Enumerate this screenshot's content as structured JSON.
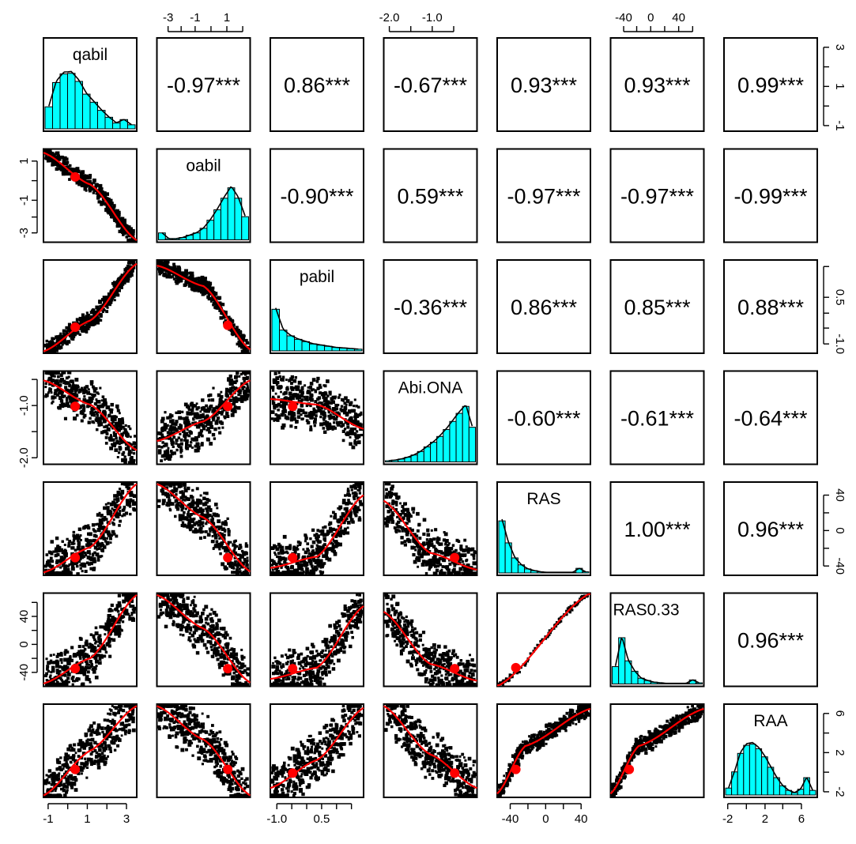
{
  "chart_data": {
    "type": "scatter",
    "variables": [
      "qabil",
      "oabil",
      "pabil",
      "Abi.ONA",
      "RAS",
      "RAS0.33",
      "RAA"
    ],
    "correlations": [
      {
        "row": 0,
        "col": 1,
        "text": "-0.97***",
        "value": -0.97
      },
      {
        "row": 0,
        "col": 2,
        "text": "0.86***",
        "value": 0.86
      },
      {
        "row": 0,
        "col": 3,
        "text": "-0.67***",
        "value": -0.67
      },
      {
        "row": 0,
        "col": 4,
        "text": "0.93***",
        "value": 0.93
      },
      {
        "row": 0,
        "col": 5,
        "text": "0.93***",
        "value": 0.93
      },
      {
        "row": 0,
        "col": 6,
        "text": "0.99***",
        "value": 0.99
      },
      {
        "row": 1,
        "col": 2,
        "text": "-0.90***",
        "value": -0.9
      },
      {
        "row": 1,
        "col": 3,
        "text": "0.59***",
        "value": 0.59
      },
      {
        "row": 1,
        "col": 4,
        "text": "-0.97***",
        "value": -0.97
      },
      {
        "row": 1,
        "col": 5,
        "text": "-0.97***",
        "value": -0.97
      },
      {
        "row": 1,
        "col": 6,
        "text": "-0.99***",
        "value": -0.99
      },
      {
        "row": 2,
        "col": 3,
        "text": "-0.36***",
        "value": -0.36
      },
      {
        "row": 2,
        "col": 4,
        "text": "0.86***",
        "value": 0.86
      },
      {
        "row": 2,
        "col": 5,
        "text": "0.85***",
        "value": 0.85
      },
      {
        "row": 2,
        "col": 6,
        "text": "0.88***",
        "value": 0.88
      },
      {
        "row": 3,
        "col": 4,
        "text": "-0.60***",
        "value": -0.6
      },
      {
        "row": 3,
        "col": 5,
        "text": "-0.61***",
        "value": -0.61
      },
      {
        "row": 3,
        "col": 6,
        "text": "-0.64***",
        "value": -0.64
      },
      {
        "row": 4,
        "col": 5,
        "text": "1.00***",
        "value": 1.0
      },
      {
        "row": 4,
        "col": 6,
        "text": "0.96***",
        "value": 0.96
      },
      {
        "row": 5,
        "col": 6,
        "text": "0.96***",
        "value": 0.96
      }
    ],
    "histograms": [
      {
        "var": "qabil",
        "counts": [
          0.38,
          0.8,
          0.95,
          0.96,
          0.82,
          0.6,
          0.46,
          0.32,
          0.2,
          0.1,
          0.16,
          0.07
        ]
      },
      {
        "var": "oabil",
        "counts": [
          0.12,
          0.02,
          0.02,
          0.04,
          0.08,
          0.12,
          0.2,
          0.34,
          0.52,
          0.72,
          0.9,
          0.72,
          0.4
        ]
      },
      {
        "var": "pabil",
        "counts": [
          0.72,
          0.36,
          0.26,
          0.2,
          0.16,
          0.12,
          0.1,
          0.08,
          0.06,
          0.05,
          0.04,
          0.03
        ]
      },
      {
        "var": "Abi.ONA",
        "counts": [
          0.02,
          0.03,
          0.05,
          0.08,
          0.12,
          0.18,
          0.26,
          0.34,
          0.44,
          0.56,
          0.7,
          0.84,
          0.96,
          0.6
        ]
      },
      {
        "var": "RAS",
        "counts": [
          0.9,
          0.52,
          0.26,
          0.14,
          0.07,
          0.04,
          0.02,
          0.01,
          0.01,
          0.01,
          0.01,
          0.01,
          0.08,
          0.02
        ]
      },
      {
        "var": "RAS0.33",
        "counts": [
          0.3,
          0.8,
          0.4,
          0.22,
          0.1,
          0.06,
          0.03,
          0.02,
          0.01,
          0.01,
          0.01,
          0.01,
          0.07,
          0.02
        ]
      },
      {
        "var": "RAA",
        "counts": [
          0.12,
          0.4,
          0.72,
          0.86,
          0.88,
          0.8,
          0.66,
          0.48,
          0.3,
          0.16,
          0.08,
          0.04,
          0.1,
          0.3,
          0.08
        ]
      }
    ],
    "scatter_trends": [
      {
        "row": 1,
        "col": 0,
        "shape": "decreasing-concave",
        "loess": [
          [
            0,
            0.96
          ],
          [
            0.5,
            0.62
          ],
          [
            1,
            0.02
          ]
        ],
        "mean": [
          0.34,
          0.7
        ]
      },
      {
        "row": 2,
        "col": 0,
        "shape": "increasing",
        "loess": [
          [
            0,
            0.02
          ],
          [
            0.5,
            0.35
          ],
          [
            1,
            0.96
          ]
        ],
        "mean": [
          0.34,
          0.28
        ]
      },
      {
        "row": 2,
        "col": 1,
        "shape": "decreasing-concave",
        "loess": [
          [
            0,
            0.94
          ],
          [
            0.5,
            0.72
          ],
          [
            1,
            0.04
          ]
        ],
        "mean": [
          0.76,
          0.3
        ]
      },
      {
        "row": 3,
        "col": 0,
        "shape": "decreasing",
        "loess": [
          [
            0,
            0.9
          ],
          [
            0.5,
            0.64
          ],
          [
            1,
            0.15
          ]
        ],
        "mean": [
          0.34,
          0.62
        ]
      },
      {
        "row": 3,
        "col": 1,
        "shape": "increasing",
        "loess": [
          [
            0,
            0.25
          ],
          [
            0.5,
            0.46
          ],
          [
            1,
            0.9
          ]
        ],
        "mean": [
          0.76,
          0.62
        ]
      },
      {
        "row": 3,
        "col": 2,
        "shape": "decreasing",
        "loess": [
          [
            0,
            0.7
          ],
          [
            0.5,
            0.64
          ],
          [
            1,
            0.38
          ]
        ],
        "mean": [
          0.24,
          0.62
        ]
      },
      {
        "row": 4,
        "col": 0,
        "shape": "increasing-sigmoid",
        "loess": [
          [
            0,
            0.03
          ],
          [
            0.5,
            0.3
          ],
          [
            1,
            0.98
          ]
        ],
        "mean": [
          0.34,
          0.19
        ]
      },
      {
        "row": 4,
        "col": 1,
        "shape": "decreasing-sigmoid",
        "loess": [
          [
            0,
            0.98
          ],
          [
            0.5,
            0.62
          ],
          [
            1,
            0.04
          ]
        ],
        "mean": [
          0.76,
          0.19
        ]
      },
      {
        "row": 4,
        "col": 2,
        "shape": "increasing",
        "loess": [
          [
            0,
            0.08
          ],
          [
            0.5,
            0.2
          ],
          [
            1,
            0.86
          ]
        ],
        "mean": [
          0.24,
          0.19
        ]
      },
      {
        "row": 4,
        "col": 3,
        "shape": "decreasing",
        "loess": [
          [
            0,
            0.8
          ],
          [
            0.5,
            0.24
          ],
          [
            1,
            0.06
          ]
        ],
        "mean": [
          0.76,
          0.19
        ]
      },
      {
        "row": 4,
        "col": 5,
        "shape": "linear",
        "loess": [
          [
            0,
            0
          ],
          [
            1,
            1
          ]
        ],
        "mean": [
          0.2,
          0.2
        ]
      },
      {
        "row": 5,
        "col": 0,
        "shape": "increasing-sigmoid",
        "loess": [
          [
            0,
            0.03
          ],
          [
            0.5,
            0.3
          ],
          [
            1,
            0.98
          ]
        ],
        "mean": [
          0.34,
          0.19
        ]
      },
      {
        "row": 5,
        "col": 1,
        "shape": "decreasing-sigmoid",
        "loess": [
          [
            0,
            0.98
          ],
          [
            0.5,
            0.62
          ],
          [
            1,
            0.04
          ]
        ],
        "mean": [
          0.76,
          0.19
        ]
      },
      {
        "row": 5,
        "col": 2,
        "shape": "increasing",
        "loess": [
          [
            0,
            0.08
          ],
          [
            0.5,
            0.2
          ],
          [
            1,
            0.86
          ]
        ],
        "mean": [
          0.24,
          0.19
        ]
      },
      {
        "row": 5,
        "col": 3,
        "shape": "decreasing",
        "loess": [
          [
            0,
            0.8
          ],
          [
            0.5,
            0.24
          ],
          [
            1,
            0.06
          ]
        ],
        "mean": [
          0.76,
          0.19
        ]
      },
      {
        "row": 5,
        "col": 4,
        "shape": "linear",
        "loess": [
          [
            0,
            0
          ],
          [
            1,
            1
          ]
        ],
        "mean": [
          0.2,
          0.2
        ]
      },
      {
        "row": 6,
        "col": 0,
        "shape": "increasing",
        "loess": [
          [
            0,
            0.02
          ],
          [
            0.5,
            0.5
          ],
          [
            1,
            0.98
          ]
        ],
        "mean": [
          0.34,
          0.3
        ]
      },
      {
        "row": 6,
        "col": 1,
        "shape": "decreasing",
        "loess": [
          [
            0,
            0.98
          ],
          [
            0.5,
            0.62
          ],
          [
            1,
            0.02
          ]
        ],
        "mean": [
          0.76,
          0.3
        ]
      },
      {
        "row": 6,
        "col": 2,
        "shape": "increasing",
        "loess": [
          [
            0,
            0.1
          ],
          [
            0.5,
            0.4
          ],
          [
            1,
            0.96
          ]
        ],
        "mean": [
          0.24,
          0.26
        ]
      },
      {
        "row": 6,
        "col": 3,
        "shape": "decreasing",
        "loess": [
          [
            0,
            0.98
          ],
          [
            0.5,
            0.46
          ],
          [
            1,
            0.1
          ]
        ],
        "mean": [
          0.76,
          0.26
        ]
      },
      {
        "row": 6,
        "col": 4,
        "shape": "increasing-concave",
        "loess": [
          [
            0,
            0.04
          ],
          [
            0.3,
            0.55
          ],
          [
            1,
            0.95
          ]
        ],
        "mean": [
          0.2,
          0.3
        ]
      },
      {
        "row": 6,
        "col": 5,
        "shape": "increasing-concave",
        "loess": [
          [
            0,
            0.04
          ],
          [
            0.3,
            0.55
          ],
          [
            1,
            0.95
          ]
        ],
        "mean": [
          0.2,
          0.3
        ]
      }
    ],
    "axes": {
      "top": [
        {
          "col": 1,
          "ticks": [
            {
              "label": "-3",
              "pos": 0.12
            },
            {
              "label": "-1",
              "pos": 0.41
            },
            {
              "label": "1",
              "pos": 0.75
            }
          ],
          "minor": [
            0.26,
            0.58,
            0.92
          ]
        },
        {
          "col": 3,
          "ticks": [
            {
              "label": "-2.0",
              "pos": 0.06
            },
            {
              "label": "-1.0",
              "pos": 0.52
            }
          ],
          "minor": [
            0.29,
            0.75
          ]
        },
        {
          "col": 5,
          "ticks": [
            {
              "label": "-40",
              "pos": 0.14
            },
            {
              "label": "0",
              "pos": 0.43
            },
            {
              "label": "40",
              "pos": 0.73
            }
          ],
          "minor": [
            0.28,
            0.58,
            0.88
          ]
        }
      ],
      "bottom": [
        {
          "col": 0,
          "ticks": [
            {
              "label": "-1",
              "pos": 0.05
            },
            {
              "label": "1",
              "pos": 0.47
            },
            {
              "label": "3",
              "pos": 0.89
            }
          ],
          "minor": [
            0.26,
            0.68
          ]
        },
        {
          "col": 2,
          "ticks": [
            {
              "label": "-1.0",
              "pos": 0.07
            },
            {
              "label": "0.5",
              "pos": 0.55
            }
          ],
          "minor": [
            0.23,
            0.39,
            0.71,
            0.87
          ]
        },
        {
          "col": 4,
          "ticks": [
            {
              "label": "-40",
              "pos": 0.14
            },
            {
              "label": "0",
              "pos": 0.52
            },
            {
              "label": "40",
              "pos": 0.9
            }
          ],
          "minor": [
            0.33,
            0.71
          ]
        },
        {
          "col": 6,
          "ticks": [
            {
              "label": "-2",
              "pos": 0.04
            },
            {
              "label": "2",
              "pos": 0.44
            },
            {
              "label": "6",
              "pos": 0.83
            }
          ],
          "minor": [
            0.24,
            0.63
          ]
        }
      ],
      "left": [
        {
          "row": 1,
          "ticks": [
            {
              "label": "1",
              "pos": 0.87
            },
            {
              "label": "-1",
              "pos": 0.45
            },
            {
              "label": "-3",
              "pos": 0.1
            }
          ],
          "minor": [
            0.66,
            0.27
          ]
        },
        {
          "row": 3,
          "ticks": [
            {
              "label": "-1.0",
              "pos": 0.63
            },
            {
              "label": "-2.0",
              "pos": 0.07
            }
          ],
          "minor": [
            0.91,
            0.35
          ]
        },
        {
          "row": 5,
          "ticks": [
            {
              "label": "40",
              "pos": 0.75
            },
            {
              "label": "0",
              "pos": 0.45
            },
            {
              "label": "-40",
              "pos": 0.15
            }
          ],
          "minor": [
            0.9,
            0.6,
            0.3
          ]
        }
      ],
      "right": [
        {
          "row": 0,
          "ticks": [
            {
              "label": "3",
              "pos": 0.9
            },
            {
              "label": "1",
              "pos": 0.48
            },
            {
              "label": "-1",
              "pos": 0.06
            }
          ],
          "minor": [
            0.69,
            0.27
          ]
        },
        {
          "row": 2,
          "ticks": [
            {
              "label": "0.5",
              "pos": 0.6
            },
            {
              "label": "-1.0",
              "pos": 0.1
            }
          ],
          "minor": [
            0.93,
            0.43,
            0.27
          ]
        },
        {
          "row": 4,
          "ticks": [
            {
              "label": "40",
              "pos": 0.86
            },
            {
              "label": "0",
              "pos": 0.48
            },
            {
              "label": "-40",
              "pos": 0.1
            }
          ],
          "minor": [
            0.67,
            0.29
          ]
        },
        {
          "row": 6,
          "ticks": [
            {
              "label": "6",
              "pos": 0.9
            },
            {
              "label": "2",
              "pos": 0.48
            },
            {
              "label": "-2",
              "pos": 0.06
            }
          ],
          "minor": [
            0.69,
            0.27
          ]
        }
      ]
    },
    "colors": {
      "histogram": "#00ffff",
      "fit": "#ff0000",
      "points": "#000000"
    }
  }
}
